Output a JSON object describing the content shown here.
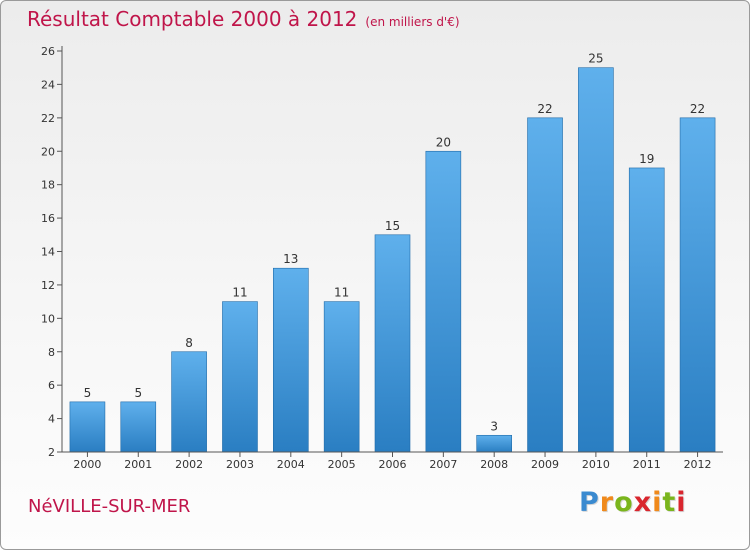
{
  "title": "Résultat Comptable 2000 à 2012",
  "subtitle": "(en milliers d'€)",
  "location": "NéVILLE-SUR-MER",
  "logo": {
    "letters": [
      "P",
      "r",
      "o",
      "x",
      "i",
      "t",
      "i"
    ],
    "colors": [
      "#3a8ad0",
      "#f08a1c",
      "#7ab51d",
      "#d9262e",
      "#f08a1c",
      "#7ab51d",
      "#d9262e"
    ]
  },
  "colors": {
    "bar_top": "#5fb0ec",
    "bar_bottom": "#2a7ec2",
    "axis": "#555555",
    "title": "#c0154a"
  },
  "chart_data": {
    "type": "bar",
    "categories": [
      "2000",
      "2001",
      "2002",
      "2003",
      "2004",
      "2005",
      "2006",
      "2007",
      "2008",
      "2009",
      "2010",
      "2011",
      "2012"
    ],
    "values": [
      5,
      5,
      8,
      11,
      13,
      11,
      15,
      20,
      3,
      22,
      25,
      19,
      22
    ],
    "ylim": [
      2,
      26
    ],
    "yticks": [
      2,
      4,
      6,
      8,
      10,
      12,
      14,
      16,
      18,
      20,
      22,
      24,
      26
    ],
    "grid": false,
    "legend": "none"
  }
}
